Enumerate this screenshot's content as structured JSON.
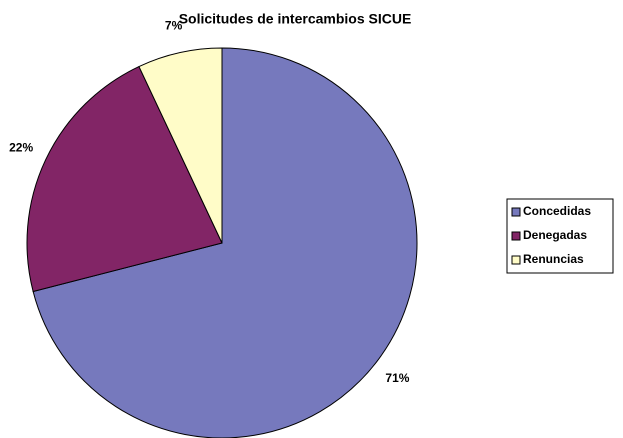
{
  "chart_data": {
    "type": "pie",
    "title": "Solicitudes de intercambios SICUE",
    "categories": [
      "Concedidas",
      "Denegadas",
      "Renuncias"
    ],
    "values": [
      71,
      22,
      7
    ],
    "value_labels": [
      "71%",
      "22%",
      "7%"
    ],
    "colors": [
      "#7679bd",
      "#822566",
      "#fffcc8"
    ],
    "legend": "right"
  }
}
